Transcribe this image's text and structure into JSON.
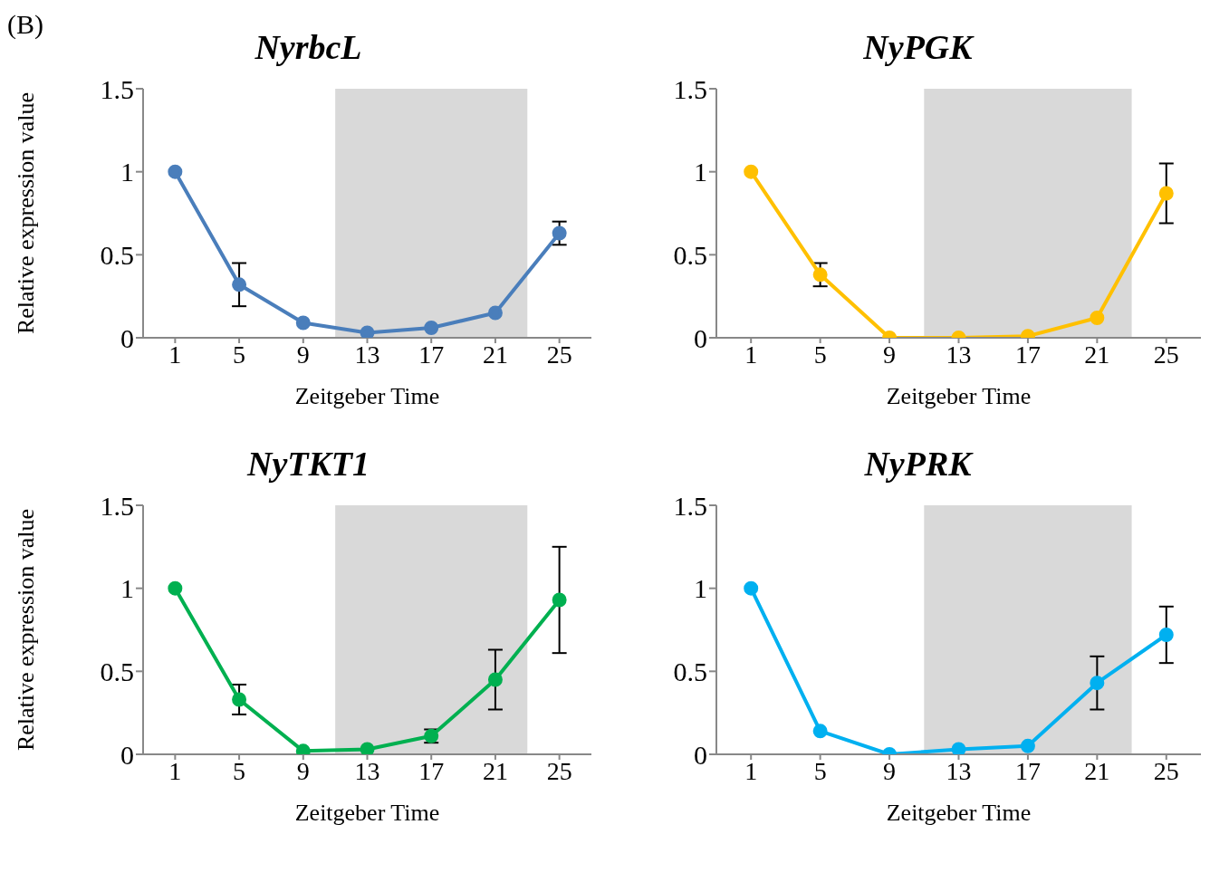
{
  "chart_data": [
    {
      "type": "line",
      "title": "NyrbcL",
      "xlabel": "Zeitgeber Time",
      "ylabel": "Relative expression value",
      "annotations": [
        "(B)"
      ],
      "categories": [
        "1",
        "5",
        "9",
        "13",
        "17",
        "21",
        "25"
      ],
      "series": [
        {
          "color": "#4a7ebb",
          "values": [
            1.0,
            0.32,
            0.09,
            0.03,
            0.06,
            0.15,
            0.63
          ],
          "errors": [
            null,
            0.13,
            null,
            null,
            null,
            null,
            0.07
          ]
        }
      ],
      "ylim": [
        0,
        1.5
      ],
      "yticks": [
        0,
        0.5,
        1,
        1.5
      ],
      "grid": false,
      "legend": false,
      "marker": "circle",
      "line_style": "solid",
      "bands": [
        {
          "axis": "x",
          "from": "13",
          "to": "21",
          "color": "#d9d9d9"
        }
      ]
    },
    {
      "type": "line",
      "title": "NyPGK",
      "xlabel": "Zeitgeber Time",
      "categories": [
        "1",
        "5",
        "9",
        "13",
        "17",
        "21",
        "25"
      ],
      "series": [
        {
          "color": "#ffc000",
          "values": [
            1.0,
            0.38,
            0.0,
            0.0,
            0.01,
            0.12,
            0.87
          ],
          "errors": [
            null,
            0.07,
            null,
            null,
            null,
            null,
            0.18
          ]
        }
      ],
      "ylim": [
        0,
        1.5
      ],
      "yticks": [
        0,
        0.5,
        1,
        1.5
      ],
      "grid": false,
      "legend": false,
      "marker": "circle",
      "line_style": "solid",
      "bands": [
        {
          "axis": "x",
          "from": "13",
          "to": "21",
          "color": "#d9d9d9"
        }
      ]
    },
    {
      "type": "line",
      "title": "NyTKT1",
      "xlabel": "Zeitgeber Time",
      "ylabel": "Relative expression  value",
      "categories": [
        "1",
        "5",
        "9",
        "13",
        "17",
        "21",
        "25"
      ],
      "series": [
        {
          "color": "#00b050",
          "values": [
            1.0,
            0.33,
            0.02,
            0.03,
            0.11,
            0.45,
            0.93
          ],
          "errors": [
            null,
            0.09,
            null,
            null,
            0.04,
            0.18,
            0.32
          ]
        }
      ],
      "ylim": [
        0,
        1.5
      ],
      "yticks": [
        0,
        0.5,
        1,
        1.5
      ],
      "grid": false,
      "legend": false,
      "marker": "circle",
      "line_style": "solid",
      "bands": [
        {
          "axis": "x",
          "from": "13",
          "to": "21",
          "color": "#d9d9d9"
        }
      ]
    },
    {
      "type": "line",
      "title": "NyPRK",
      "xlabel": "Zeitgeber Time",
      "categories": [
        "1",
        "5",
        "9",
        "13",
        "17",
        "21",
        "25"
      ],
      "series": [
        {
          "color": "#00b0f0",
          "values": [
            1.0,
            0.14,
            0.0,
            0.03,
            0.05,
            0.43,
            0.72
          ],
          "errors": [
            null,
            null,
            null,
            null,
            null,
            0.16,
            0.17
          ]
        }
      ],
      "ylim": [
        0,
        1.5
      ],
      "yticks": [
        0,
        0.5,
        1,
        1.5
      ],
      "grid": false,
      "legend": false,
      "marker": "circle",
      "line_style": "solid",
      "bands": [
        {
          "axis": "x",
          "from": "13",
          "to": "21",
          "color": "#d9d9d9"
        }
      ]
    }
  ]
}
